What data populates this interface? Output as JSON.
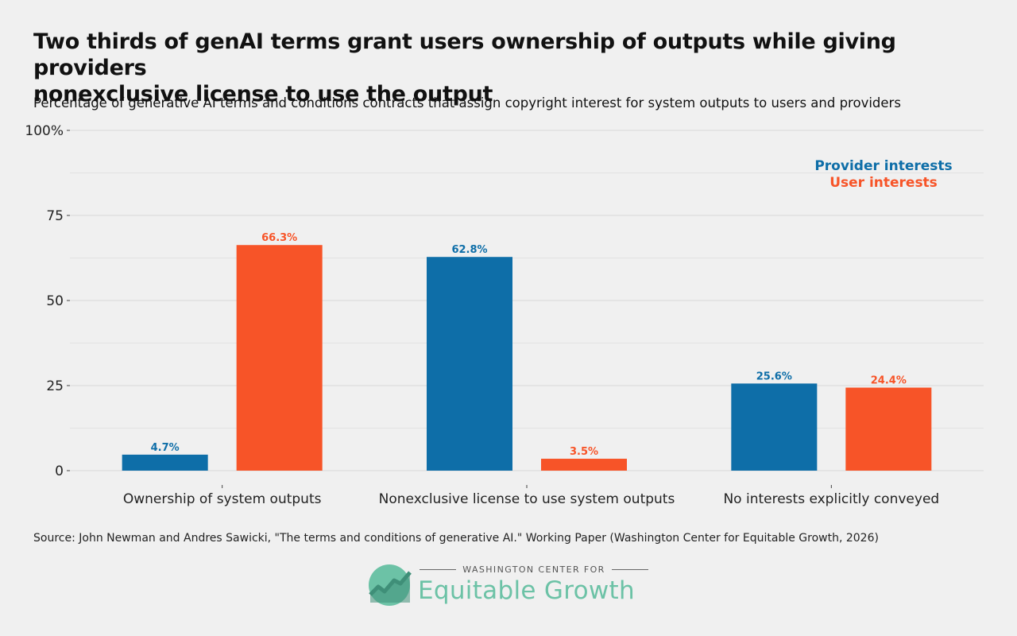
{
  "title_lines": [
    "Two thirds of genAI terms grant users ownership of outputs while giving providers",
    "nonexclusive license to use the output"
  ],
  "subtitle": "Percentage of generative AI terms and conditions contracts that assign copyright interest for system outputs to users and providers",
  "chart_data": {
    "type": "bar",
    "categories": [
      "Ownership of system outputs",
      "Nonexclusive license to use system outputs",
      "No interests explicitly conveyed"
    ],
    "series": [
      {
        "name": "Provider interests",
        "values": [
          4.7,
          62.8,
          25.6
        ],
        "labels": [
          "4.7%",
          "62.8%",
          "25.6%"
        ],
        "color": "#0e6ea8"
      },
      {
        "name": "User interests",
        "values": [
          66.3,
          3.5,
          24.4
        ],
        "labels": [
          "66.3%",
          "3.5%",
          "24.4%"
        ],
        "color": "#f75428"
      }
    ],
    "ylim": [
      0,
      100
    ],
    "yticks": [
      0,
      25,
      50,
      75,
      100
    ],
    "ytick_labels": [
      "0",
      "25",
      "50",
      "75",
      "100%"
    ],
    "grid": true,
    "legend_placement": "top-right"
  },
  "source": "Source: John Newman and Andres Sawicki, \"The terms and conditions of generative AI.\" Working Paper (Washington Center for Equitable Growth, 2026)",
  "logo": {
    "small_text": "WASHINGTON CENTER FOR",
    "big_text": "Equitable Growth",
    "color": "#6cc2a6"
  }
}
